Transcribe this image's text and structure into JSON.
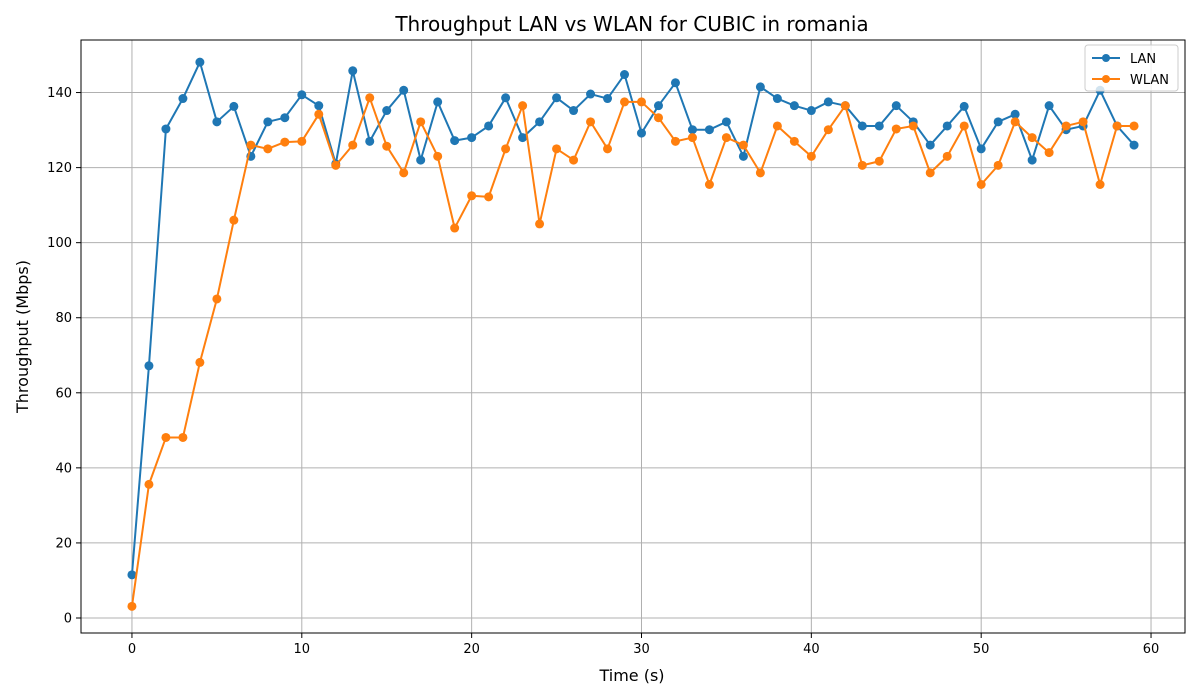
{
  "chart_data": {
    "type": "line",
    "title": "Throughput LAN vs WLAN for CUBIC in romania",
    "xlabel": "Time (s)",
    "ylabel": "Throughput (Mbps)",
    "xlim": [
      -3,
      62
    ],
    "ylim": [
      -4,
      154
    ],
    "xticks": [
      0,
      10,
      20,
      30,
      40,
      50,
      60
    ],
    "yticks": [
      0,
      20,
      40,
      60,
      80,
      100,
      120,
      140
    ],
    "grid": true,
    "legend_position": "top-right",
    "x": [
      0,
      1,
      2,
      3,
      4,
      5,
      6,
      7,
      8,
      9,
      10,
      11,
      12,
      13,
      14,
      15,
      16,
      17,
      18,
      19,
      20,
      21,
      22,
      23,
      24,
      25,
      26,
      27,
      28,
      29,
      30,
      31,
      32,
      33,
      34,
      35,
      36,
      37,
      38,
      39,
      40,
      41,
      42,
      43,
      44,
      45,
      46,
      47,
      48,
      49,
      50,
      51,
      52,
      53,
      54,
      55,
      56,
      57,
      58,
      59
    ],
    "series": [
      {
        "name": "LAN",
        "color": "#1f77b4",
        "values": [
          11.5,
          67.2,
          130.3,
          138.4,
          148.1,
          132.2,
          136.3,
          123.0,
          132.2,
          133.3,
          139.4,
          136.5,
          121.0,
          145.8,
          127.0,
          135.2,
          140.6,
          122.0,
          137.5,
          127.2,
          128.0,
          131.1,
          138.6,
          128.0,
          132.2,
          138.6,
          135.2,
          139.6,
          138.4,
          144.8,
          129.2,
          136.5,
          142.6,
          130.1,
          130.1,
          132.2,
          123.0,
          141.5,
          138.4,
          136.5,
          135.2,
          137.5,
          136.5,
          131.1,
          131.1,
          136.5,
          132.2,
          126.0,
          131.1,
          136.3,
          125.0,
          132.2,
          134.2,
          122.0,
          136.5,
          130.1,
          131.1,
          140.6,
          131.1,
          126.0
        ]
      },
      {
        "name": "WLAN",
        "color": "#ff7f0e",
        "values": [
          3.1,
          35.6,
          48.1,
          48.1,
          68.1,
          85.0,
          106.0,
          126.0,
          125.0,
          126.8,
          127.0,
          134.2,
          120.6,
          126.0,
          138.6,
          125.7,
          118.6,
          132.2,
          123.0,
          103.9,
          112.5,
          112.2,
          125.0,
          136.5,
          105.0,
          125.0,
          122.0,
          132.2,
          125.0,
          137.5,
          137.5,
          133.3,
          127.0,
          128.0,
          115.5,
          128.0,
          126.0,
          118.6,
          131.1,
          127.0,
          123.0,
          130.1,
          136.5,
          120.6,
          121.7,
          130.3,
          131.1,
          118.6,
          123.0,
          131.1,
          115.5,
          120.6,
          132.2,
          128.0,
          124.0,
          131.1,
          132.2,
          115.5,
          131.1,
          131.1
        ]
      }
    ]
  }
}
